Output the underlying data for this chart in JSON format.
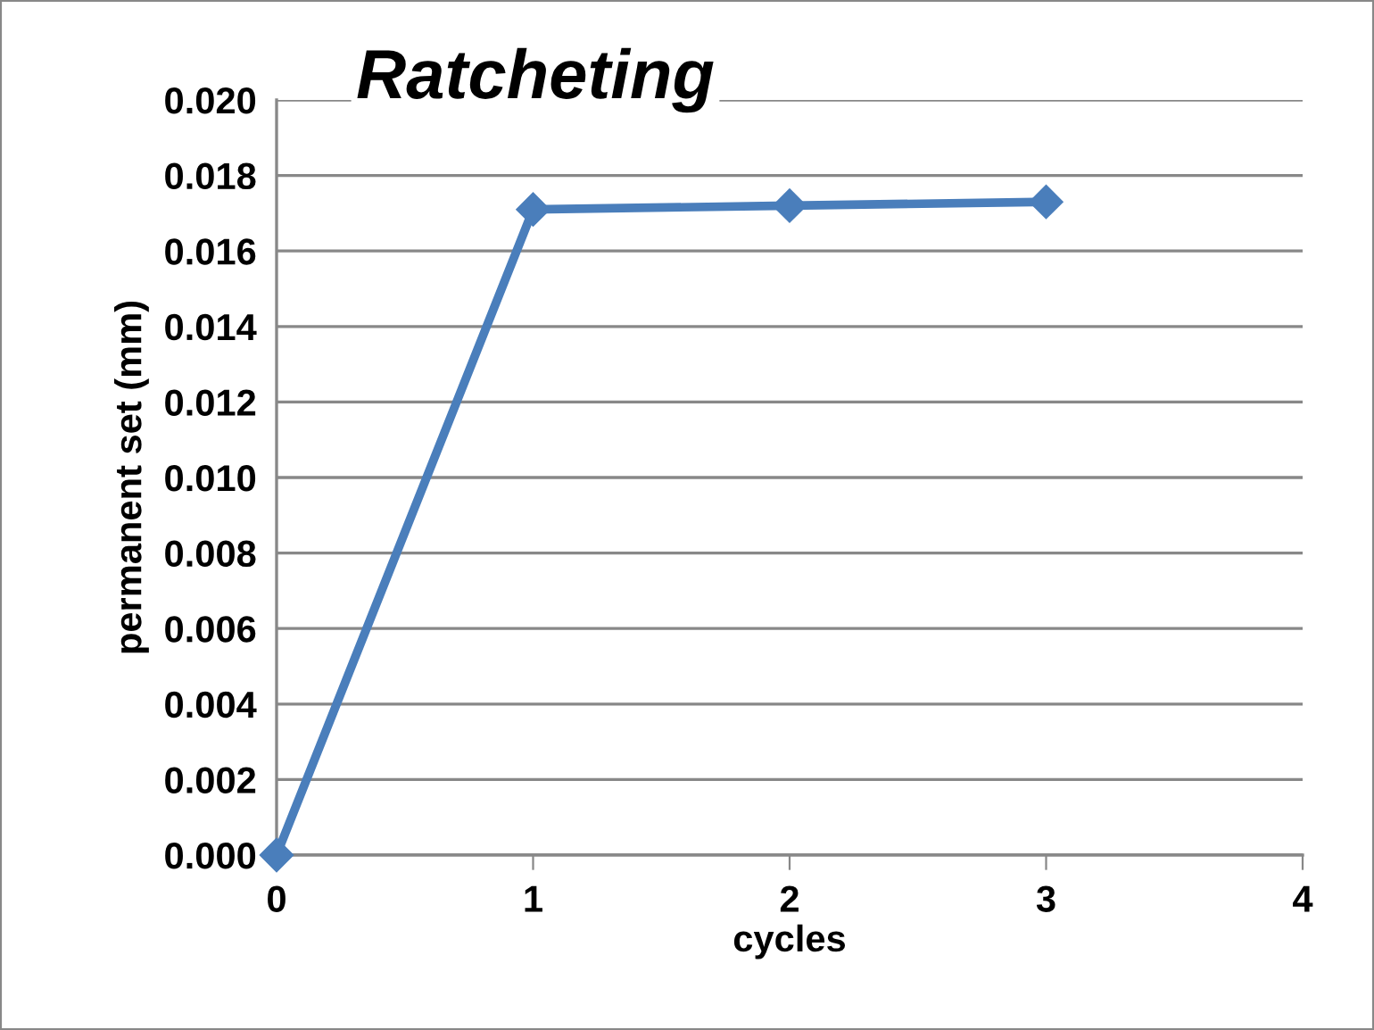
{
  "chart_data": {
    "type": "line",
    "title": "Ratcheting",
    "xlabel": "cycles",
    "ylabel": "permanent set (mm)",
    "x": [
      0,
      1,
      2,
      3
    ],
    "series": [
      {
        "color": "#4a7ebb",
        "values": [
          0.0,
          0.0171,
          0.0172,
          0.0173
        ]
      }
    ],
    "xlim": [
      0,
      4
    ],
    "xticks": [
      0,
      1,
      2,
      3,
      4
    ],
    "ylim": [
      0,
      0.02
    ],
    "yticks": [
      {
        "value": 0,
        "label": "0.000"
      },
      {
        "value": 0.002,
        "label": "0.002"
      },
      {
        "value": 0.004,
        "label": "0.004"
      },
      {
        "value": 0.006,
        "label": "0.006"
      },
      {
        "value": 0.008,
        "label": "0.008"
      },
      {
        "value": 0.01,
        "label": "0.010"
      },
      {
        "value": 0.012,
        "label": "0.012"
      },
      {
        "value": 0.014,
        "label": "0.014"
      },
      {
        "value": 0.016,
        "label": "0.016"
      },
      {
        "value": 0.018,
        "label": "0.018"
      },
      {
        "value": 0.02,
        "label": "0.020"
      }
    ],
    "grid": "y",
    "marker": "diamond",
    "line_style": "solid"
  }
}
